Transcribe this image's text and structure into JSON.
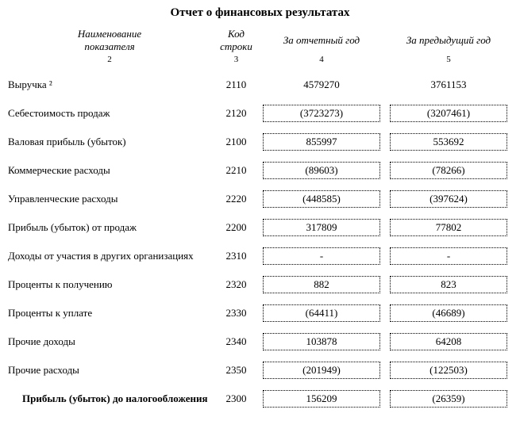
{
  "title": "Отчет о финансовых результатах",
  "headers": {
    "name_l1": "Наименование",
    "name_l2": "показателя",
    "code_l1": "Код",
    "code_l2": "строки",
    "current": "За отчетный год",
    "previous": "За предыдущий год",
    "sub_name": "2",
    "sub_code": "3",
    "sub_cur": "4",
    "sub_prev": "5"
  },
  "rows": [
    {
      "indicator": "Выручка ²",
      "code": "2110",
      "current": "4579270",
      "previous": "3761153",
      "box_cur": false,
      "box_prev": false,
      "bold": false
    },
    {
      "indicator": "Себестоимость продаж",
      "code": "2120",
      "current": "(3723273)",
      "previous": "(3207461)",
      "box_cur": true,
      "box_prev": true,
      "bold": false
    },
    {
      "indicator": "Валовая прибыль (убыток)",
      "code": "2100",
      "current": "855997",
      "previous": "553692",
      "box_cur": true,
      "box_prev": true,
      "bold": false
    },
    {
      "indicator": "Коммерческие расходы",
      "code": "2210",
      "current": "(89603)",
      "previous": "(78266)",
      "box_cur": true,
      "box_prev": true,
      "bold": false
    },
    {
      "indicator": "Управленческие расходы",
      "code": "2220",
      "current": "(448585)",
      "previous": "(397624)",
      "box_cur": true,
      "box_prev": true,
      "bold": false
    },
    {
      "indicator": "Прибыль (убыток) от продаж",
      "code": "2200",
      "current": "317809",
      "previous": "77802",
      "box_cur": true,
      "box_prev": true,
      "bold": false
    },
    {
      "indicator": "Доходы от участия в других организациях",
      "code": "2310",
      "current": "-",
      "previous": "-",
      "box_cur": true,
      "box_prev": true,
      "bold": false
    },
    {
      "indicator": "Проценты к получению",
      "code": "2320",
      "current": "882",
      "previous": "823",
      "box_cur": true,
      "box_prev": true,
      "bold": false
    },
    {
      "indicator": "Проценты к уплате",
      "code": "2330",
      "current": "(64411)",
      "previous": "(46689)",
      "box_cur": true,
      "box_prev": true,
      "bold": false
    },
    {
      "indicator": "Прочие доходы",
      "code": "2340",
      "current": "103878",
      "previous": "64208",
      "box_cur": true,
      "box_prev": true,
      "bold": false
    },
    {
      "indicator": "Прочие расходы",
      "code": "2350",
      "current": "(201949)",
      "previous": "(122503)",
      "box_cur": true,
      "box_prev": true,
      "bold": false
    },
    {
      "indicator": "Прибыль (убыток) до налогообложения",
      "code": "2300",
      "current": "156209",
      "previous": "(26359)",
      "box_cur": true,
      "box_prev": true,
      "bold": true
    }
  ]
}
